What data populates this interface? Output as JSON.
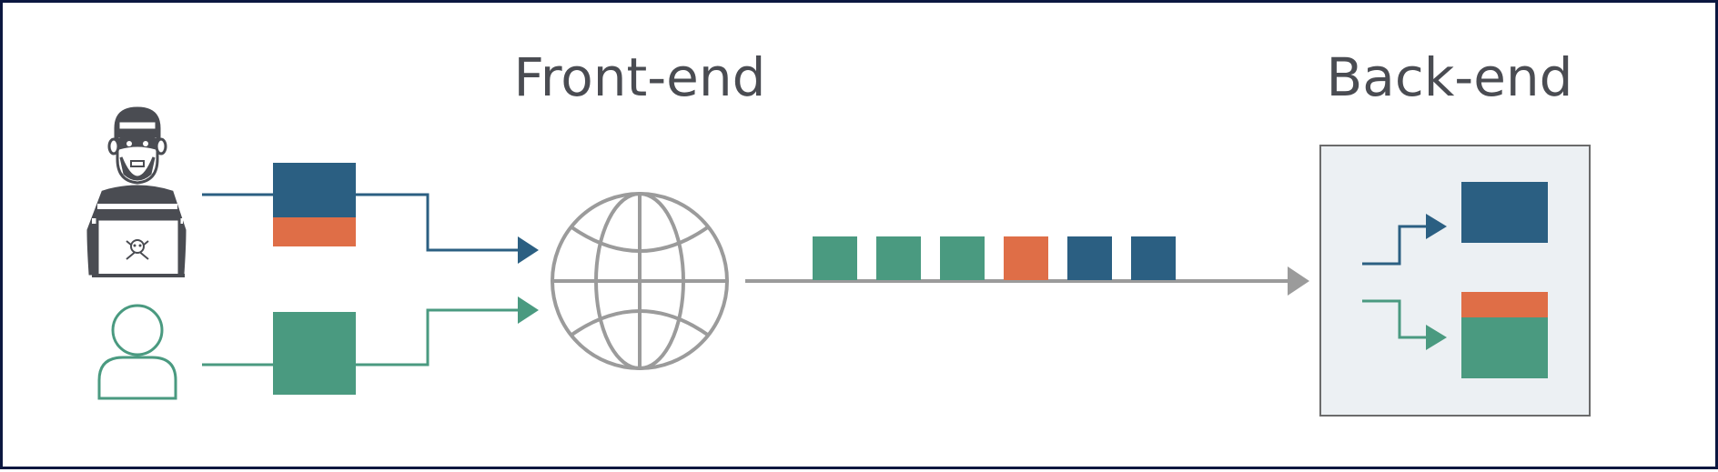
{
  "labels": {
    "front_end": "Front-end",
    "back_end": "Back-end"
  },
  "colors": {
    "attacker_blue": "#2b5f82",
    "user_green": "#4a9a80",
    "smuggled_orange": "#df6e47",
    "network_gray": "#9b9b9b",
    "backend_panel": "#ecf0f3",
    "border": "#0b1740"
  },
  "icons": {
    "attacker": "hacker-with-laptop-icon",
    "user": "person-outline-icon",
    "network": "globe-icon",
    "skull": "skull-crossbones-icon"
  },
  "request_queue": [
    {
      "kind": "user",
      "color": "#4a9a80"
    },
    {
      "kind": "user",
      "color": "#4a9a80"
    },
    {
      "kind": "user",
      "color": "#4a9a80"
    },
    {
      "kind": "smuggled",
      "color": "#df6e47"
    },
    {
      "kind": "attacker",
      "color": "#2b5f82"
    },
    {
      "kind": "attacker",
      "color": "#2b5f82"
    }
  ]
}
